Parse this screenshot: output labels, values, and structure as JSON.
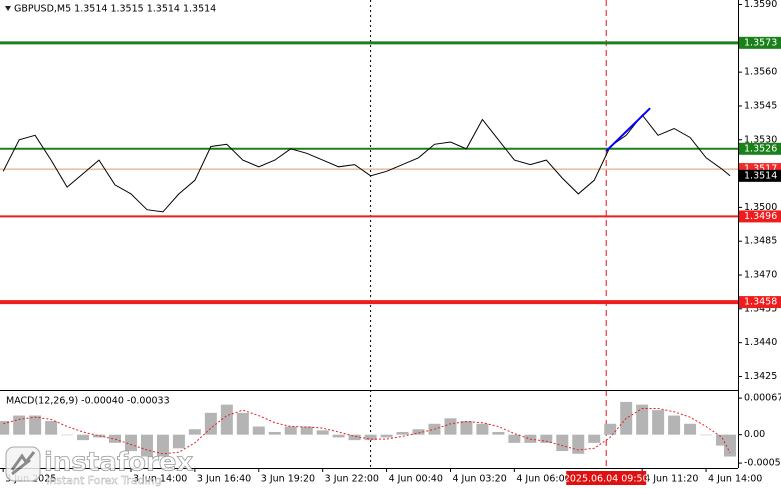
{
  "chart_data": [
    {
      "type": "line",
      "title": "GBPUSD,M5  1.3514 1.3515 1.3514 1.3514",
      "color": "#000000",
      "x": [
        "2025.06.03 08:40",
        "2025.06.03 09:20",
        "2025.06.03 10:00",
        "2025.06.03 10:40",
        "2025.06.03 11:20",
        "2025.06.03 12:00",
        "2025.06.03 12:40",
        "2025.06.03 13:20",
        "2025.06.03 14:00",
        "2025.06.03 14:40",
        "2025.06.03 15:20",
        "2025.06.03 16:00",
        "2025.06.03 16:40",
        "2025.06.03 17:20",
        "2025.06.03 18:00",
        "2025.06.03 18:40",
        "2025.06.03 19:20",
        "2025.06.03 20:00",
        "2025.06.03 20:40",
        "2025.06.03 21:20",
        "2025.06.03 22:00",
        "2025.06.03 22:40",
        "2025.06.03 23:20",
        "2025.06.04 00:00",
        "2025.06.04 00:40",
        "2025.06.04 01:20",
        "2025.06.04 02:00",
        "2025.06.04 02:40",
        "2025.06.04 03:20",
        "2025.06.04 04:00",
        "2025.06.04 04:40",
        "2025.06.04 05:20",
        "2025.06.04 06:00",
        "2025.06.04 06:40",
        "2025.06.04 07:20",
        "2025.06.04 08:00",
        "2025.06.04 08:40",
        "2025.06.04 09:20",
        "2025.06.04 10:00",
        "2025.06.04 10:40",
        "2025.06.04 11:20",
        "2025.06.04 12:00",
        "2025.06.04 12:40",
        "2025.06.04 13:20",
        "2025.06.04 14:00",
        "2025.06.04 14:40",
        "2025.06.04 15:00"
      ],
      "values": [
        1.3516,
        1.353,
        1.3532,
        1.3521,
        1.3509,
        1.3515,
        1.3521,
        1.351,
        1.3506,
        1.3499,
        1.3498,
        1.3506,
        1.3512,
        1.3527,
        1.3528,
        1.3521,
        1.3518,
        1.3521,
        1.3526,
        1.3524,
        1.3521,
        1.3518,
        1.3519,
        1.3514,
        1.3516,
        1.3519,
        1.3522,
        1.3528,
        1.3529,
        1.3526,
        1.3539,
        1.353,
        1.3521,
        1.3519,
        1.3521,
        1.3513,
        1.3506,
        1.3512,
        1.3527,
        1.3532,
        1.3541,
        1.3532,
        1.3535,
        1.3531,
        1.3522,
        1.3517,
        1.3514
      ],
      "xlim": [
        "2025.06.03 08:32",
        "2025.06.04 15:20"
      ],
      "xticks": [
        {
          "value": "2025.06.03 08:40",
          "label": "3 Jun 2025"
        },
        {
          "value": "2025.06.03 14:00",
          "label": "3 Jun 14:00"
        },
        {
          "value": "2025.06.03 16:40",
          "label": "3 Jun 16:40"
        },
        {
          "value": "2025.06.03 19:20",
          "label": "3 Jun 19:20"
        },
        {
          "value": "2025.06.03 22:00",
          "label": "3 Jun 22:00"
        },
        {
          "value": "2025.06.04 00:40",
          "label": "4 Jun 00:40"
        },
        {
          "value": "2025.06.04 03:20",
          "label": "4 Jun 03:20"
        },
        {
          "value": "2025.06.04 06:00",
          "label": "4 Jun 06:00"
        },
        {
          "value": "2025.06.04 11:20",
          "label": "4 Jun 11:20"
        },
        {
          "value": "2025.06.04 14:00",
          "label": "4 Jun 14:00"
        }
      ],
      "ylim": [
        1.3419,
        1.3592
      ],
      "yticks": [
        {
          "value": 1.359,
          "label": "1.3590"
        },
        {
          "value": 1.356,
          "label": "1.3560"
        },
        1.3545,
        {
          "value": 1.353,
          "label": "1.3530"
        },
        {
          "value": 1.35,
          "label": "1.3500"
        },
        1.3485,
        {
          "value": 1.347,
          "label": "1.3470"
        },
        1.3455,
        {
          "value": 1.344,
          "label": "1.3440"
        },
        1.3425
      ],
      "levels": [
        {
          "value": 1.3573,
          "color": "#1a801a",
          "line_width": 3
        },
        {
          "value": 1.3526,
          "color": "#1a801a",
          "line_width": 2
        },
        {
          "value": 1.3517,
          "color": "#ee2a2a",
          "line_color": "#d89b6a",
          "line_width": 1
        },
        {
          "value": 1.3514,
          "color": "#000000"
        },
        {
          "value": 1.3496,
          "color": "#ee1c1c",
          "line_width": 2
        },
        {
          "value": 1.3458,
          "color": "#ee1c1c",
          "line_width": 4
        }
      ],
      "trend_line": {
        "x": [
          "2025.06.04 09:50",
          "2025.06.04 11:40"
        ],
        "values": [
          1.3525,
          1.3544
        ],
        "color": "#0000ff"
      },
      "vlines": [
        {
          "x": "2025.06.04 00:00",
          "color": "#000000"
        },
        {
          "x": "2025.06.04 09:50",
          "color": "#e01010"
        }
      ],
      "cursor_time": "2025.06.04 09:50",
      "cursor_color": "#e01010"
    },
    {
      "type": "macd",
      "title": "MACD(12,26,9) -0.00040 -0.00033",
      "color": "#b4b4b4",
      "values": [
        0.00025,
        0.00035,
        0.00035,
        0.00025,
        0,
        -0.0001,
        -5e-05,
        -0.00015,
        -0.0003,
        -0.0004,
        -0.0004,
        -0.00025,
        0.0001,
        0.0004,
        0.00055,
        0.0004,
        0.00015,
        5e-05,
        0.00015,
        0.00015,
        8e-05,
        -5e-05,
        -0.0001,
        -0.0001,
        -5e-05,
        5e-05,
        0.0001,
        0.0002,
        0.0003,
        0.00025,
        0.0002,
        5e-05,
        -0.00015,
        -0.00015,
        -0.00015,
        -0.0003,
        -0.00035,
        -0.00015,
        0.0002,
        0.0006,
        0.00055,
        0.00045,
        0.00035,
        0.0002,
        0,
        -0.0002,
        -0.0004
      ],
      "signal": [
        0.0002,
        0.00028,
        0.00032,
        0.00028,
        0.00015,
        5e-05,
        -2e-05,
        -8e-05,
        -0.00018,
        -0.00028,
        -0.00035,
        -0.00032,
        -0.00015,
        0.00012,
        0.00035,
        0.00045,
        0.00035,
        0.00022,
        0.00015,
        0.00014,
        0.00012,
        5e-05,
        -3e-05,
        -8e-05,
        -8e-05,
        -3e-05,
        3e-05,
        0.0001,
        0.0002,
        0.00024,
        0.00022,
        0.00015,
        2e-05,
        -8e-05,
        -0.00012,
        -0.0002,
        -0.00028,
        -0.00025,
        -5e-05,
        0.0003,
        0.00048,
        0.00048,
        0.00042,
        0.00032,
        0.00015,
        -5e-05,
        -0.00033
      ],
      "signal_color": "#e02020",
      "ylim": [
        -0.00061,
        0.0008
      ],
      "yticks": [
        0.00067,
        {
          "value": 0,
          "label": "0.00"
        },
        -0.00052
      ]
    }
  ],
  "watermark": {
    "name": "instaforex",
    "tagline": "Instant Forex Trading"
  }
}
